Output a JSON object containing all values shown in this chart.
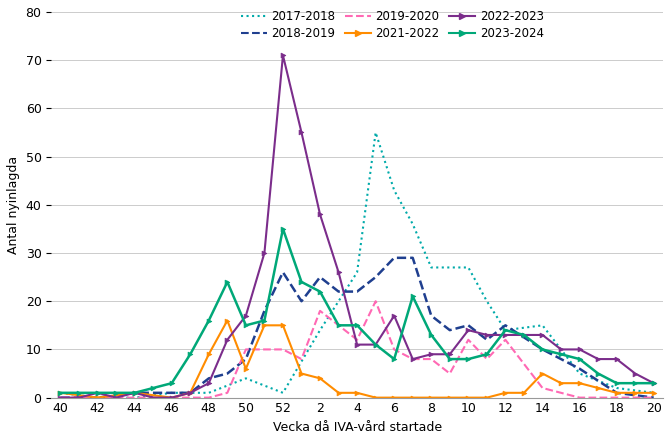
{
  "ylabel": "Antal nyinlagda",
  "xlabel": "Vecka då IVA-vård startade",
  "ylim": [
    0,
    80
  ],
  "yticks": [
    0,
    10,
    20,
    30,
    40,
    50,
    60,
    70,
    80
  ],
  "x_order": [
    40,
    41,
    42,
    43,
    44,
    45,
    46,
    47,
    48,
    49,
    50,
    51,
    52,
    1,
    2,
    3,
    4,
    5,
    6,
    7,
    8,
    9,
    10,
    11,
    12,
    13,
    14,
    15,
    16,
    17,
    18,
    19,
    20
  ],
  "x_tick_labels": [
    "40",
    "42",
    "44",
    "46",
    "48",
    "50",
    "52",
    "2",
    "4",
    "6",
    "8",
    "10",
    "12",
    "14",
    "16",
    "18",
    "20"
  ],
  "x_tick_weeks": [
    40,
    42,
    44,
    46,
    48,
    50,
    52,
    2,
    4,
    6,
    8,
    10,
    12,
    14,
    16,
    18,
    20
  ],
  "series": {
    "2017-2018": {
      "color": "#00AAAA",
      "linestyle": "dotted",
      "linewidth": 1.5,
      "marker": null,
      "data_weeks": [
        40,
        42,
        44,
        46,
        48,
        50,
        52,
        2,
        3,
        4,
        5,
        6,
        7,
        8,
        9,
        10,
        11,
        12,
        14,
        16,
        18,
        20
      ],
      "data_vals": [
        1,
        0,
        0,
        1,
        1,
        4,
        1,
        14,
        20,
        26,
        55,
        43,
        36,
        27,
        27,
        27,
        20,
        14,
        15,
        5,
        2,
        1
      ]
    },
    "2018-2019": {
      "color": "#1F3F8F",
      "linestyle": "dashed",
      "linewidth": 1.8,
      "marker": null,
      "data_weeks": [
        40,
        42,
        44,
        46,
        47,
        48,
        49,
        50,
        51,
        52,
        1,
        2,
        3,
        4,
        5,
        6,
        7,
        8,
        9,
        10,
        11,
        12,
        14,
        16,
        18,
        20
      ],
      "data_vals": [
        0,
        0,
        1,
        1,
        1,
        4,
        5,
        8,
        18,
        26,
        20,
        25,
        22,
        22,
        25,
        29,
        29,
        17,
        14,
        15,
        12,
        15,
        10,
        6,
        1,
        0
      ]
    },
    "2019-2020": {
      "color": "#FF69B4",
      "linestyle": "dashed",
      "linewidth": 1.5,
      "marker": null,
      "data_weeks": [
        40,
        42,
        44,
        46,
        48,
        49,
        50,
        51,
        52,
        1,
        2,
        3,
        4,
        5,
        6,
        7,
        8,
        9,
        10,
        11,
        12,
        14,
        16,
        18,
        20
      ],
      "data_vals": [
        0,
        0,
        0,
        0,
        0,
        1,
        10,
        10,
        10,
        8,
        18,
        15,
        12,
        20,
        10,
        8,
        8,
        5,
        12,
        8,
        12,
        2,
        0,
        0,
        0
      ]
    },
    "2021-2022": {
      "color": "#FF8C00",
      "linestyle": "solid",
      "linewidth": 1.5,
      "marker": ">",
      "markersize": 3.5,
      "data_weeks": [
        40,
        42,
        44,
        46,
        47,
        48,
        49,
        50,
        51,
        52,
        1,
        2,
        3,
        4,
        5,
        6,
        7,
        8,
        9,
        10,
        11,
        12,
        13,
        14,
        15,
        16,
        17,
        18,
        19,
        20
      ],
      "data_vals": [
        1,
        0,
        1,
        0,
        1,
        9,
        16,
        6,
        15,
        15,
        5,
        4,
        1,
        1,
        0,
        0,
        0,
        0,
        0,
        0,
        0,
        1,
        1,
        5,
        3,
        3,
        2,
        1,
        1,
        1
      ]
    },
    "2022-2023": {
      "color": "#7B2D8B",
      "linestyle": "solid",
      "linewidth": 1.5,
      "marker": ">",
      "markersize": 3.5,
      "data_weeks": [
        40,
        41,
        42,
        43,
        44,
        45,
        46,
        47,
        48,
        49,
        50,
        51,
        52,
        1,
        2,
        3,
        4,
        5,
        6,
        7,
        8,
        9,
        10,
        11,
        12,
        13,
        14,
        15,
        16,
        17,
        18,
        19,
        20
      ],
      "data_vals": [
        0,
        0,
        1,
        0,
        1,
        0,
        0,
        1,
        3,
        12,
        17,
        30,
        71,
        55,
        38,
        26,
        11,
        11,
        17,
        8,
        9,
        9,
        14,
        13,
        13,
        13,
        13,
        10,
        10,
        8,
        8,
        5,
        3
      ]
    },
    "2023-2024": {
      "color": "#00A878",
      "linestyle": "solid",
      "linewidth": 1.8,
      "marker": ">",
      "markersize": 3.5,
      "data_weeks": [
        40,
        41,
        42,
        43,
        44,
        45,
        46,
        47,
        48,
        49,
        50,
        51,
        52,
        1,
        2,
        3,
        4,
        5,
        6,
        7,
        8,
        9,
        10,
        11,
        12,
        13,
        14,
        15,
        16,
        17,
        18,
        19,
        20
      ],
      "data_vals": [
        1,
        1,
        1,
        1,
        1,
        2,
        3,
        9,
        16,
        24,
        15,
        16,
        35,
        24,
        22,
        15,
        15,
        11,
        8,
        21,
        13,
        8,
        8,
        9,
        14,
        13,
        10,
        9,
        8,
        5,
        3,
        3,
        3
      ]
    }
  },
  "legend": [
    {
      "label": "2017-2018",
      "color": "#00AAAA",
      "linestyle": "dotted",
      "marker": null
    },
    {
      "label": "2018-2019",
      "color": "#1F3F8F",
      "linestyle": "dashed",
      "marker": null
    },
    {
      "label": "2019-2020",
      "color": "#FF69B4",
      "linestyle": "dashed",
      "marker": null
    },
    {
      "label": "2021-2022",
      "color": "#FF8C00",
      "linestyle": "solid",
      "marker": ">"
    },
    {
      "label": "2022-2023",
      "color": "#7B2D8B",
      "linestyle": "solid",
      "marker": ">"
    },
    {
      "label": "2023-2024",
      "color": "#00A878",
      "linestyle": "solid",
      "marker": ">"
    }
  ]
}
